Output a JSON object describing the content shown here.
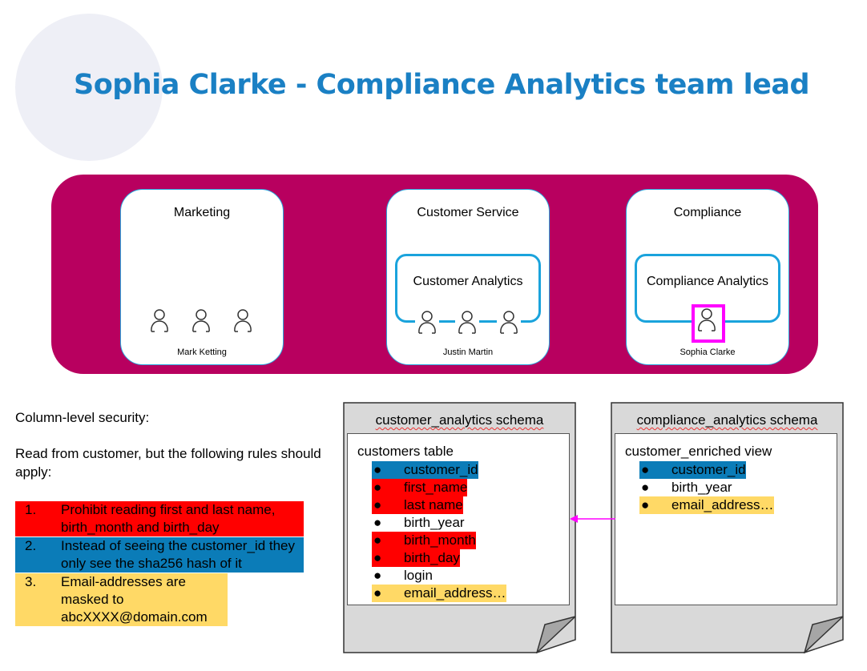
{
  "title": "Sophia Clarke - Compliance Analytics team lead",
  "departments": [
    {
      "name": "Marketing",
      "person": "Mark Ketting"
    },
    {
      "name": "Customer Service",
      "team": "Customer Analytics",
      "person": "Justin Martin"
    },
    {
      "name": "Compliance",
      "team": "Compliance Analytics",
      "person": "Sophia Clarke"
    }
  ],
  "notes": {
    "heading": "Column-level security:",
    "intro": "Read from customer, but the following rules should apply:",
    "rules": [
      {
        "num": "1.",
        "text": "Prohibit reading first and last name, birth_month and birth_day",
        "color": "#ff0000"
      },
      {
        "num": "2.",
        "text": "Instead of seeing the customer_id they only see the sha256 hash of it",
        "color": "#0b7cb8"
      },
      {
        "num": "3.",
        "text": "Email-addresses are masked to abcXXXX@domain.com",
        "color": "#ffd966"
      }
    ]
  },
  "schemas": [
    {
      "name": "customer_analytics schema",
      "object": "customers table",
      "columns": [
        {
          "name": "customer_id",
          "color": "#0b7cb8"
        },
        {
          "name": "first_name",
          "color": "#ff0000"
        },
        {
          "name": "last name",
          "color": "#ff0000"
        },
        {
          "name": "birth_year"
        },
        {
          "name": "birth_month",
          "color": "#ff0000"
        },
        {
          "name": "birth_day",
          "color": "#ff0000"
        },
        {
          "name": "login"
        },
        {
          "name": "email_address…",
          "color": "#ffd966"
        }
      ]
    },
    {
      "name": "compliance_analytics schema",
      "object": "customer_enriched view",
      "columns": [
        {
          "name": "customer_id",
          "color": "#0b7cb8"
        },
        {
          "name": "birth_year"
        },
        {
          "name": "email_address…",
          "color": "#ffd966"
        }
      ]
    }
  ],
  "colors": {
    "band": "#b8005f",
    "title": "#1a80c4",
    "highlight": "#ff00ff",
    "arrow": "#ff00ff"
  }
}
